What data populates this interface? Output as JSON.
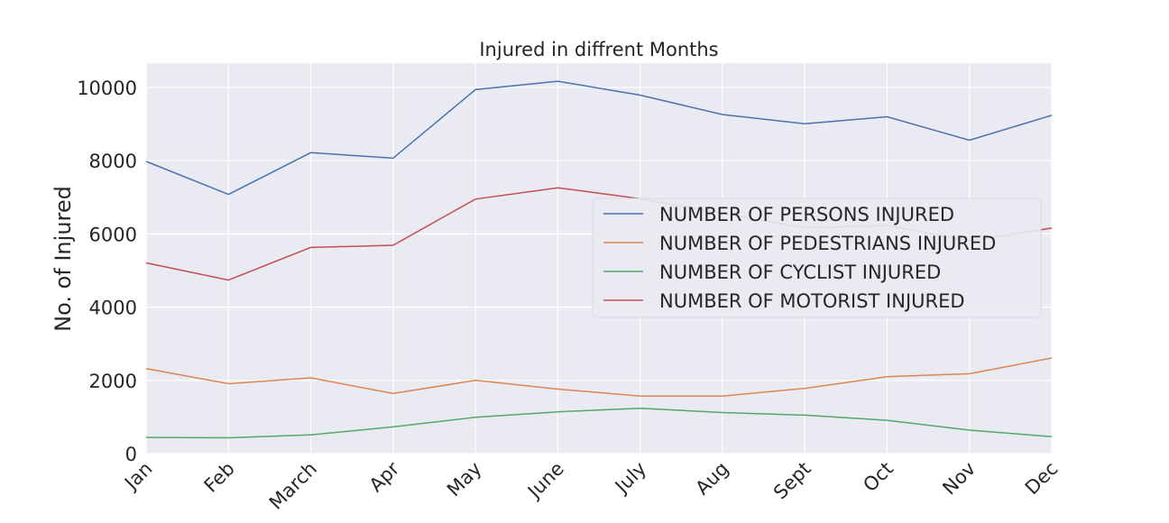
{
  "chart_data": {
    "type": "line",
    "title": "Injured in diffrent Months",
    "xlabel": "",
    "ylabel": "No. of Injured",
    "categories": [
      "Jan",
      "Feb",
      "March",
      "Apr",
      "May",
      "June",
      "July",
      "Aug",
      "Sept",
      "Oct",
      "Nov",
      "Dec"
    ],
    "ylim": [
      0,
      10600
    ],
    "yticks": [
      0,
      2000,
      4000,
      6000,
      8000,
      10000
    ],
    "ytick_labels": [
      "0",
      "2000",
      "4000",
      "6000",
      "8000",
      "10000"
    ],
    "grid": true,
    "legend_position": "center-right",
    "series": [
      {
        "name": "NUMBER OF PERSONS INJURED",
        "color": "#4c72b0",
        "values": [
          7980,
          7080,
          8220,
          8070,
          9940,
          10170,
          9790,
          9260,
          9010,
          9200,
          8560,
          9240
        ]
      },
      {
        "name": "NUMBER OF PEDESTRIANS INJURED",
        "color": "#dd8452",
        "values": [
          2320,
          1910,
          2070,
          1640,
          2000,
          1760,
          1570,
          1570,
          1780,
          2100,
          2180,
          2610
        ]
      },
      {
        "name": "NUMBER OF CYCLIST INJURED",
        "color": "#55a868",
        "values": [
          440,
          430,
          510,
          730,
          990,
          1140,
          1240,
          1120,
          1050,
          910,
          640,
          460
        ]
      },
      {
        "name": "NUMBER OF MOTORIST INJURED",
        "color": "#c44e52",
        "values": [
          5210,
          4740,
          5630,
          5690,
          6950,
          7260,
          6960,
          6560,
          6170,
          6230,
          5810,
          6160
        ]
      }
    ]
  }
}
